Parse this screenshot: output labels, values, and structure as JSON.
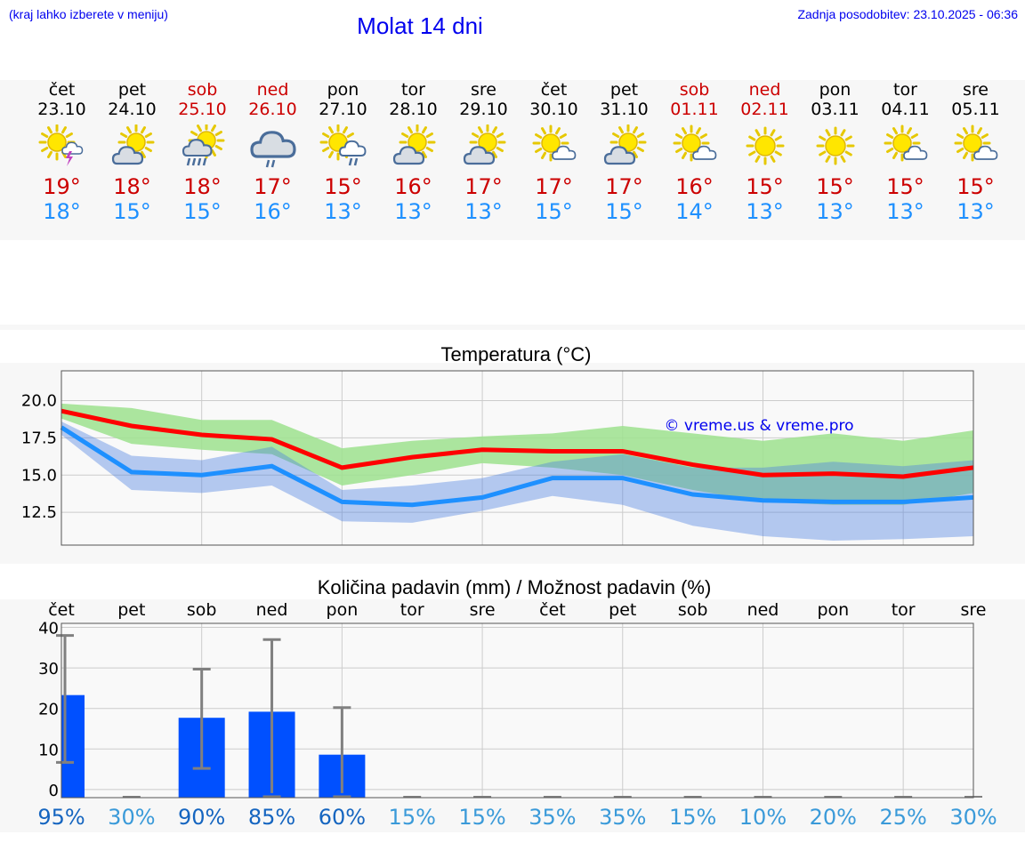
{
  "header": {
    "hint": "(kraj lahko izberete v meniju)",
    "title": "Molat 14 dni",
    "updated": "Zadnja posodobitev: 23.10.2025 - 06:36"
  },
  "colors": {
    "link": "#0000ee",
    "max": "#cc0000",
    "min": "#1e90ff",
    "bar": "#0050ff",
    "band_max": "#9ee28e",
    "band_min": "#9fb8f0"
  },
  "days": [
    {
      "name": "čet",
      "date": "23.10",
      "weekend": false,
      "icon": "sun-thunderstorm-icon",
      "tmax": "19°",
      "tmin": "18°",
      "prob": "95%"
    },
    {
      "name": "pet",
      "date": "24.10",
      "weekend": false,
      "icon": "sun-cloud-icon",
      "tmax": "18°",
      "tmin": "15°",
      "prob": "30%"
    },
    {
      "name": "sob",
      "date": "25.10",
      "weekend": true,
      "icon": "sun-cloud-rain-icon",
      "tmax": "18°",
      "tmin": "15°",
      "prob": "90%"
    },
    {
      "name": "ned",
      "date": "26.10",
      "weekend": true,
      "icon": "cloud-rain-icon",
      "tmax": "17°",
      "tmin": "16°",
      "prob": "85%"
    },
    {
      "name": "pon",
      "date": "27.10",
      "weekend": false,
      "icon": "sun-cloud-drizzle-icon",
      "tmax": "15°",
      "tmin": "13°",
      "prob": "60%"
    },
    {
      "name": "tor",
      "date": "28.10",
      "weekend": false,
      "icon": "sun-cloud-icon",
      "tmax": "16°",
      "tmin": "13°",
      "prob": "15%"
    },
    {
      "name": "sre",
      "date": "29.10",
      "weekend": false,
      "icon": "sun-cloud-icon",
      "tmax": "17°",
      "tmin": "13°",
      "prob": "15%"
    },
    {
      "name": "čet",
      "date": "30.10",
      "weekend": false,
      "icon": "sun-small-cloud-icon",
      "tmax": "17°",
      "tmin": "15°",
      "prob": "35%"
    },
    {
      "name": "pet",
      "date": "31.10",
      "weekend": false,
      "icon": "sun-cloud-icon",
      "tmax": "17°",
      "tmin": "15°",
      "prob": "35%"
    },
    {
      "name": "sob",
      "date": "01.11",
      "weekend": true,
      "icon": "sun-small-cloud-icon",
      "tmax": "16°",
      "tmin": "14°",
      "prob": "15%"
    },
    {
      "name": "ned",
      "date": "02.11",
      "weekend": true,
      "icon": "sun-icon",
      "tmax": "15°",
      "tmin": "13°",
      "prob": "10%"
    },
    {
      "name": "pon",
      "date": "03.11",
      "weekend": false,
      "icon": "sun-icon",
      "tmax": "15°",
      "tmin": "13°",
      "prob": "20%"
    },
    {
      "name": "tor",
      "date": "04.11",
      "weekend": false,
      "icon": "sun-small-cloud-icon",
      "tmax": "15°",
      "tmin": "13°",
      "prob": "25%"
    },
    {
      "name": "sre",
      "date": "05.11",
      "weekend": false,
      "icon": "sun-small-cloud-icon",
      "tmax": "15°",
      "tmin": "13°",
      "prob": "30%"
    }
  ],
  "chart_data": [
    {
      "type": "line",
      "title": "Temperatura (°C)",
      "watermark": "© vreme.us & vreme.pro",
      "x": [
        "23.10",
        "24.10",
        "25.10",
        "26.10",
        "27.10",
        "28.10",
        "29.10",
        "30.10",
        "31.10",
        "01.11",
        "02.11",
        "03.11",
        "04.11",
        "05.11"
      ],
      "ylim": [
        10.3,
        22.0
      ],
      "yticks": [
        "20.0",
        "17.5",
        "15.0",
        "12.5"
      ],
      "ytick_values": [
        20.0,
        17.5,
        15.0,
        12.5
      ],
      "grid": true,
      "series": [
        {
          "name": "max",
          "values": [
            19.3,
            18.3,
            17.7,
            17.4,
            15.5,
            16.2,
            16.7,
            16.6,
            16.6,
            15.7,
            15.0,
            15.1,
            14.9,
            15.5
          ],
          "band_upper": [
            19.8,
            19.5,
            18.7,
            18.7,
            16.8,
            17.3,
            17.6,
            17.8,
            18.3,
            17.8,
            17.3,
            17.8,
            17.3,
            18.0
          ],
          "band_lower": [
            18.8,
            17.1,
            16.7,
            16.4,
            14.3,
            15.0,
            15.8,
            15.5,
            15.0,
            14.0,
            13.2,
            13.0,
            13.0,
            13.8
          ]
        },
        {
          "name": "min",
          "values": [
            18.2,
            15.2,
            15.0,
            15.6,
            13.2,
            13.0,
            13.5,
            14.8,
            14.8,
            13.7,
            13.3,
            13.2,
            13.2,
            13.5
          ],
          "band_upper": [
            18.6,
            16.3,
            16.0,
            16.9,
            14.0,
            14.3,
            14.8,
            15.9,
            16.4,
            15.5,
            15.5,
            15.9,
            15.6,
            16.0
          ],
          "band_lower": [
            17.7,
            14.0,
            13.8,
            14.3,
            11.9,
            11.8,
            12.6,
            13.6,
            13.0,
            11.6,
            10.9,
            10.6,
            10.7,
            10.9
          ]
        }
      ]
    },
    {
      "type": "bar",
      "title": "Količina padavin (mm) / Možnost padavin (%)",
      "categories": [
        "čet",
        "pet",
        "sob",
        "ned",
        "pon",
        "tor",
        "sre",
        "čet",
        "pet",
        "sob",
        "ned",
        "pon",
        "tor",
        "sre"
      ],
      "values": [
        23.3,
        0,
        17.7,
        19.2,
        8.6,
        0,
        0,
        0,
        0,
        0,
        0,
        0,
        0,
        0
      ],
      "range_upper": [
        38.0,
        0,
        29.7,
        37.0,
        20.2,
        0,
        0,
        0,
        0,
        0,
        0,
        0,
        0,
        0
      ],
      "range_lower": [
        6.7,
        0,
        5.2,
        0,
        0,
        0,
        0,
        0,
        0,
        0,
        0,
        0,
        0,
        0
      ],
      "probabilities": [
        "95%",
        "30%",
        "90%",
        "85%",
        "60%",
        "15%",
        "15%",
        "35%",
        "35%",
        "15%",
        "10%",
        "20%",
        "25%",
        "30%"
      ],
      "prob_values": [
        95,
        30,
        90,
        85,
        60,
        15,
        15,
        35,
        35,
        15,
        10,
        20,
        25,
        30
      ],
      "ylim": [
        -2,
        41
      ],
      "yticks": [
        "40",
        "30",
        "20",
        "10",
        "0"
      ],
      "ytick_values": [
        40,
        30,
        20,
        10,
        0
      ],
      "grid": true
    }
  ]
}
